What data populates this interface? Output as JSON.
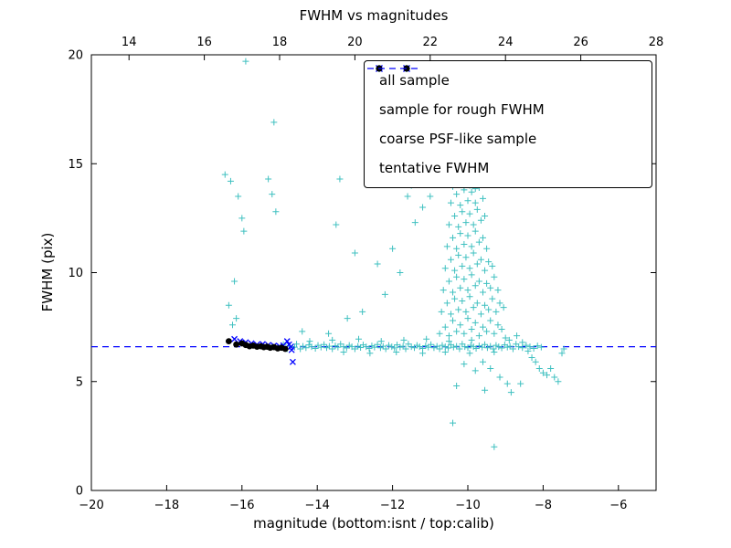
{
  "chart_data": {
    "type": "scatter",
    "title": "FWHM vs magnitudes",
    "xlabel": "magnitude (bottom:isnt / top:calib)",
    "ylabel": "FWHM (pix)",
    "xlim": [
      -20,
      -5
    ],
    "ylim": [
      0,
      20
    ],
    "top_xlim": [
      13,
      28
    ],
    "x_ticks_bottom": [
      -20,
      -18,
      -16,
      -14,
      -12,
      -10,
      -8,
      -6
    ],
    "x_ticks_top": [
      14,
      16,
      18,
      20,
      22,
      24,
      26,
      28
    ],
    "y_ticks": [
      0,
      5,
      10,
      15,
      20
    ],
    "grid": false,
    "legend_position": "upper right",
    "tentative_fwhm": 6.6,
    "colors": {
      "all_sample": "#3fc0c0",
      "rough_fwhm": "#0000ff",
      "psf_like": "#000000",
      "tentative_line": "#0000ff"
    },
    "legend": [
      {
        "label": "all sample",
        "marker": "plus",
        "color": "#3fc0c0"
      },
      {
        "label": "sample for rough FWHM",
        "marker": "x",
        "color": "#0000ff"
      },
      {
        "label": "coarse PSF-like sample",
        "marker": "dot",
        "color": "#000000"
      },
      {
        "label": "tentative FWHM",
        "marker": "dash",
        "color": "#0000ff"
      }
    ],
    "series": [
      {
        "name": "all sample",
        "marker": "plus",
        "color": "#3fc0c0",
        "points": [
          [
            -15.2,
            6.62
          ],
          [
            -15.05,
            6.55
          ],
          [
            -14.9,
            6.7
          ],
          [
            -14.8,
            6.5
          ],
          [
            -14.72,
            6.62
          ],
          [
            -14.6,
            6.58
          ],
          [
            -14.55,
            6.72
          ],
          [
            -14.45,
            6.5
          ],
          [
            -14.38,
            6.62
          ],
          [
            -14.3,
            6.55
          ],
          [
            -14.22,
            6.68
          ],
          [
            -14.15,
            6.6
          ],
          [
            -14.05,
            6.52
          ],
          [
            -13.98,
            6.66
          ],
          [
            -13.9,
            6.58
          ],
          [
            -13.82,
            6.7
          ],
          [
            -13.75,
            6.55
          ],
          [
            -13.68,
            6.62
          ],
          [
            -13.6,
            6.5
          ],
          [
            -13.52,
            6.64
          ],
          [
            -13.45,
            6.58
          ],
          [
            -13.38,
            6.72
          ],
          [
            -13.3,
            6.6
          ],
          [
            -13.22,
            6.54
          ],
          [
            -13.15,
            6.66
          ],
          [
            -13.08,
            6.6
          ],
          [
            -13.0,
            6.5
          ],
          [
            -12.92,
            6.62
          ],
          [
            -12.85,
            6.56
          ],
          [
            -12.78,
            6.68
          ],
          [
            -12.7,
            6.6
          ],
          [
            -12.62,
            6.52
          ],
          [
            -12.55,
            6.64
          ],
          [
            -12.48,
            6.58
          ],
          [
            -12.4,
            6.7
          ],
          [
            -12.32,
            6.55
          ],
          [
            -12.25,
            6.62
          ],
          [
            -12.18,
            6.5
          ],
          [
            -12.1,
            6.66
          ],
          [
            -12.02,
            6.6
          ],
          [
            -11.95,
            6.54
          ],
          [
            -11.88,
            6.68
          ],
          [
            -11.8,
            6.58
          ],
          [
            -11.72,
            6.62
          ],
          [
            -11.65,
            6.5
          ],
          [
            -11.58,
            6.72
          ],
          [
            -11.5,
            6.6
          ],
          [
            -11.42,
            6.55
          ],
          [
            -11.35,
            6.66
          ],
          [
            -11.28,
            6.6
          ],
          [
            -11.2,
            6.52
          ],
          [
            -11.12,
            6.64
          ],
          [
            -11.05,
            6.58
          ],
          [
            -10.98,
            6.7
          ],
          [
            -10.9,
            6.55
          ],
          [
            -10.82,
            6.62
          ],
          [
            -10.75,
            6.5
          ],
          [
            -10.68,
            6.66
          ],
          [
            -10.6,
            6.6
          ],
          [
            -10.52,
            6.54
          ],
          [
            -10.45,
            6.68
          ],
          [
            -10.38,
            6.58
          ],
          [
            -10.3,
            6.62
          ],
          [
            -10.22,
            6.5
          ],
          [
            -10.15,
            6.72
          ],
          [
            -10.08,
            6.6
          ],
          [
            -10.0,
            6.55
          ],
          [
            -9.92,
            6.66
          ],
          [
            -9.85,
            6.6
          ],
          [
            -9.78,
            6.52
          ],
          [
            -9.7,
            6.64
          ],
          [
            -9.62,
            6.58
          ],
          [
            -9.55,
            6.7
          ],
          [
            -9.48,
            6.55
          ],
          [
            -9.4,
            6.62
          ],
          [
            -9.32,
            6.5
          ],
          [
            -9.25,
            6.66
          ],
          [
            -9.18,
            6.6
          ],
          [
            -9.1,
            6.54
          ],
          [
            -9.02,
            6.68
          ],
          [
            -8.95,
            6.58
          ],
          [
            -8.88,
            6.62
          ],
          [
            -8.8,
            6.5
          ],
          [
            -8.72,
            6.72
          ],
          [
            -8.65,
            6.6
          ],
          [
            -8.55,
            6.55
          ],
          [
            -8.45,
            6.66
          ],
          [
            -8.35,
            6.6
          ],
          [
            -8.25,
            6.52
          ],
          [
            -8.15,
            6.64
          ],
          [
            -8.05,
            6.58
          ],
          [
            -14.2,
            6.85
          ],
          [
            -13.6,
            6.9
          ],
          [
            -12.9,
            6.95
          ],
          [
            -12.3,
            6.85
          ],
          [
            -11.7,
            6.9
          ],
          [
            -11.1,
            6.95
          ],
          [
            -10.5,
            6.85
          ],
          [
            -9.9,
            6.9
          ],
          [
            -13.3,
            6.35
          ],
          [
            -12.6,
            6.3
          ],
          [
            -11.9,
            6.35
          ],
          [
            -11.2,
            6.3
          ],
          [
            -10.6,
            6.35
          ],
          [
            -9.95,
            6.3
          ],
          [
            -9.3,
            6.35
          ],
          [
            -10.75,
            7.2
          ],
          [
            -10.6,
            7.5
          ],
          [
            -10.5,
            7.1
          ],
          [
            -10.4,
            7.8
          ],
          [
            -10.3,
            7.3
          ],
          [
            -10.2,
            7.6
          ],
          [
            -10.1,
            7.2
          ],
          [
            -10.0,
            7.9
          ],
          [
            -9.9,
            7.4
          ],
          [
            -9.8,
            7.7
          ],
          [
            -9.7,
            7.1
          ],
          [
            -9.6,
            7.5
          ],
          [
            -9.5,
            7.3
          ],
          [
            -9.4,
            7.8
          ],
          [
            -9.3,
            7.2
          ],
          [
            -9.2,
            7.6
          ],
          [
            -9.1,
            7.4
          ],
          [
            -9.0,
            7.0
          ],
          [
            -10.7,
            8.2
          ],
          [
            -10.55,
            8.6
          ],
          [
            -10.45,
            8.1
          ],
          [
            -10.35,
            8.8
          ],
          [
            -10.25,
            8.3
          ],
          [
            -10.15,
            8.7
          ],
          [
            -10.05,
            8.2
          ],
          [
            -9.95,
            8.9
          ],
          [
            -9.85,
            8.4
          ],
          [
            -9.75,
            8.6
          ],
          [
            -9.65,
            8.1
          ],
          [
            -9.55,
            8.5
          ],
          [
            -9.45,
            8.3
          ],
          [
            -9.35,
            8.8
          ],
          [
            -9.25,
            8.2
          ],
          [
            -9.15,
            8.6
          ],
          [
            -9.05,
            8.4
          ],
          [
            -10.65,
            9.2
          ],
          [
            -10.5,
            9.6
          ],
          [
            -10.4,
            9.1
          ],
          [
            -10.3,
            9.8
          ],
          [
            -10.2,
            9.3
          ],
          [
            -10.1,
            9.7
          ],
          [
            -10.0,
            9.2
          ],
          [
            -9.9,
            9.9
          ],
          [
            -9.8,
            9.4
          ],
          [
            -9.7,
            9.6
          ],
          [
            -9.6,
            9.1
          ],
          [
            -9.5,
            9.5
          ],
          [
            -9.4,
            9.3
          ],
          [
            -9.3,
            9.8
          ],
          [
            -9.2,
            9.2
          ],
          [
            -10.6,
            10.2
          ],
          [
            -10.45,
            10.6
          ],
          [
            -10.35,
            10.1
          ],
          [
            -10.25,
            10.8
          ],
          [
            -10.15,
            10.3
          ],
          [
            -10.05,
            10.7
          ],
          [
            -9.95,
            10.2
          ],
          [
            -9.85,
            10.9
          ],
          [
            -9.75,
            10.4
          ],
          [
            -9.65,
            10.6
          ],
          [
            -9.55,
            10.1
          ],
          [
            -9.45,
            10.5
          ],
          [
            -9.35,
            10.3
          ],
          [
            -10.55,
            11.2
          ],
          [
            -10.4,
            11.6
          ],
          [
            -10.3,
            11.1
          ],
          [
            -10.2,
            11.8
          ],
          [
            -10.1,
            11.3
          ],
          [
            -10.0,
            11.7
          ],
          [
            -9.9,
            11.2
          ],
          [
            -9.8,
            11.9
          ],
          [
            -9.7,
            11.4
          ],
          [
            -9.6,
            11.6
          ],
          [
            -9.5,
            11.1
          ],
          [
            -10.5,
            12.2
          ],
          [
            -10.35,
            12.6
          ],
          [
            -10.25,
            12.1
          ],
          [
            -10.15,
            12.8
          ],
          [
            -10.05,
            12.3
          ],
          [
            -9.95,
            12.7
          ],
          [
            -9.85,
            12.2
          ],
          [
            -9.75,
            12.9
          ],
          [
            -9.65,
            12.4
          ],
          [
            -9.55,
            12.6
          ],
          [
            -10.45,
            13.2
          ],
          [
            -10.3,
            13.6
          ],
          [
            -10.2,
            13.1
          ],
          [
            -10.1,
            13.8
          ],
          [
            -10.0,
            13.3
          ],
          [
            -9.9,
            13.7
          ],
          [
            -9.8,
            13.2
          ],
          [
            -9.7,
            13.9
          ],
          [
            -9.6,
            13.4
          ],
          [
            -10.4,
            13.95
          ],
          [
            -10.25,
            14.05
          ],
          [
            -10.1,
            13.9
          ],
          [
            -9.95,
            14.0
          ],
          [
            -9.8,
            13.85
          ],
          [
            -9.65,
            14.05
          ],
          [
            -11.4,
            12.3
          ],
          [
            -11.2,
            13.0
          ],
          [
            -11.0,
            13.5
          ],
          [
            -11.5,
            14.0
          ],
          [
            -11.3,
            14.05
          ],
          [
            -10.1,
            5.8
          ],
          [
            -9.8,
            5.5
          ],
          [
            -9.6,
            5.9
          ],
          [
            -9.4,
            5.6
          ],
          [
            -9.15,
            5.2
          ],
          [
            -8.95,
            4.9
          ],
          [
            -9.55,
            4.6
          ],
          [
            -10.3,
            4.8
          ],
          [
            -8.6,
            4.9
          ],
          [
            -10.4,
            3.1
          ],
          [
            -9.3,
            2.0
          ],
          [
            -8.85,
            4.5
          ],
          [
            -8.9,
            6.9
          ],
          [
            -8.7,
            7.1
          ],
          [
            -8.55,
            6.8
          ],
          [
            -8.4,
            6.4
          ],
          [
            -8.3,
            6.1
          ],
          [
            -8.2,
            5.9
          ],
          [
            -8.1,
            5.6
          ],
          [
            -8.0,
            5.4
          ],
          [
            -7.9,
            5.3
          ],
          [
            -7.8,
            5.6
          ],
          [
            -7.7,
            5.2
          ],
          [
            -7.6,
            5.0
          ],
          [
            -7.5,
            6.3
          ],
          [
            -7.45,
            6.5
          ],
          [
            -16.45,
            14.5
          ],
          [
            -16.3,
            14.2
          ],
          [
            -16.1,
            13.5
          ],
          [
            -16.0,
            12.5
          ],
          [
            -15.95,
            11.9
          ],
          [
            -16.2,
            9.6
          ],
          [
            -16.35,
            8.5
          ],
          [
            -16.25,
            7.6
          ],
          [
            -16.15,
            7.9
          ],
          [
            -15.3,
            14.3
          ],
          [
            -15.2,
            13.6
          ],
          [
            -15.1,
            12.8
          ],
          [
            -15.9,
            19.7
          ],
          [
            -15.15,
            16.9
          ],
          [
            -13.5,
            12.2
          ],
          [
            -13.0,
            10.9
          ],
          [
            -12.4,
            10.4
          ],
          [
            -12.0,
            11.1
          ],
          [
            -11.8,
            10.0
          ],
          [
            -12.2,
            9.0
          ],
          [
            -12.8,
            8.2
          ],
          [
            -13.2,
            7.9
          ],
          [
            -13.4,
            14.3
          ],
          [
            -11.6,
            13.5
          ],
          [
            -14.4,
            7.3
          ],
          [
            -13.7,
            7.2
          ]
        ]
      },
      {
        "name": "sample for rough FWHM",
        "marker": "x",
        "color": "#0000ff",
        "points": [
          [
            -16.2,
            6.95
          ],
          [
            -16.05,
            6.85
          ],
          [
            -15.9,
            6.8
          ],
          [
            -15.75,
            6.75
          ],
          [
            -15.6,
            6.7
          ],
          [
            -15.45,
            6.72
          ],
          [
            -15.3,
            6.68
          ],
          [
            -15.15,
            6.65
          ],
          [
            -15.0,
            6.62
          ],
          [
            -14.9,
            6.66
          ],
          [
            -14.8,
            6.85
          ],
          [
            -14.75,
            6.7
          ],
          [
            -14.7,
            6.6
          ],
          [
            -14.68,
            6.45
          ],
          [
            -14.65,
            5.9
          ]
        ]
      },
      {
        "name": "coarse PSF-like sample",
        "marker": "dot",
        "color": "#000000",
        "points": [
          [
            -16.35,
            6.85
          ],
          [
            -16.15,
            6.7
          ],
          [
            -16.0,
            6.75
          ],
          [
            -15.9,
            6.68
          ],
          [
            -15.8,
            6.62
          ],
          [
            -15.7,
            6.65
          ],
          [
            -15.6,
            6.6
          ],
          [
            -15.5,
            6.62
          ],
          [
            -15.42,
            6.58
          ],
          [
            -15.33,
            6.6
          ],
          [
            -15.25,
            6.55
          ],
          [
            -15.15,
            6.58
          ],
          [
            -15.05,
            6.52
          ],
          [
            -14.95,
            6.55
          ],
          [
            -14.85,
            6.5
          ]
        ]
      }
    ]
  }
}
